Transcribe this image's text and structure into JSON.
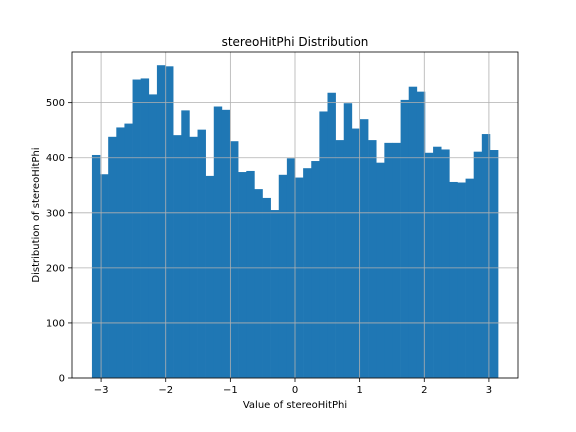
{
  "chart_data": {
    "type": "bar",
    "subtype": "histogram",
    "title": "stereoHitPhi Distribution",
    "xlabel": "Value of stereoHitPhi",
    "ylabel": "Distribution of stereoHitPhi",
    "xlim": [
      -3.45,
      3.45
    ],
    "ylim": [
      0,
      592
    ],
    "xticks": [
      -3,
      -2,
      -1,
      0,
      1,
      2,
      3
    ],
    "xtick_labels": [
      "−3",
      "−2",
      "−1",
      "0",
      "1",
      "2",
      "3"
    ],
    "yticks": [
      0,
      100,
      200,
      300,
      400,
      500
    ],
    "ytick_labels": [
      "0",
      "100",
      "200",
      "300",
      "400",
      "500"
    ],
    "grid": true,
    "bar_color": "#1f77b4",
    "bin_range": [
      -3.14159,
      3.14159
    ],
    "bin_count": 50,
    "values": [
      405,
      370,
      438,
      455,
      462,
      542,
      544,
      515,
      568,
      566,
      441,
      486,
      438,
      451,
      367,
      493,
      487,
      430,
      374,
      376,
      343,
      327,
      305,
      369,
      399,
      364,
      381,
      394,
      484,
      518,
      432,
      499,
      453,
      470,
      432,
      391,
      427,
      427,
      505,
      529,
      520,
      409,
      420,
      415,
      356,
      355,
      362,
      411,
      443,
      414
    ]
  }
}
